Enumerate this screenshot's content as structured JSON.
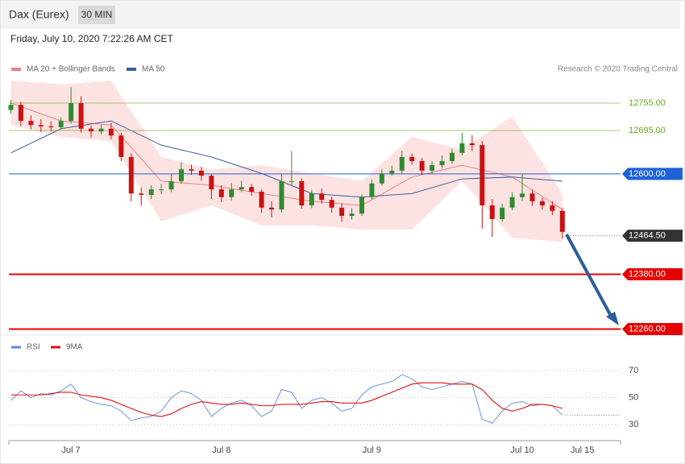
{
  "header": {
    "title": "Dax (Eurex)",
    "interval": "30 MIN",
    "timestamp": "Friday, July 10, 2020 7:22:26 AM CET"
  },
  "chart_data": [
    {
      "type": "candlestick",
      "legend": [
        {
          "name": "MA 20 + Bollinger Bands",
          "color": "#f08080"
        },
        {
          "name": "MA 50",
          "color": "#3a5fa0"
        }
      ],
      "credit": "Research © 2020 Trading Central",
      "xlim": [
        -0.2,
        60.8
      ],
      "xticks": [
        {
          "value": 6,
          "label": "Jul 7"
        },
        {
          "value": 21,
          "label": "Jul 8"
        },
        {
          "value": 36,
          "label": "Jul 9"
        },
        {
          "value": 51,
          "label": "Jul 10"
        },
        {
          "value": 57,
          "label": "Jul 15"
        }
      ],
      "ylim": [
        12250,
        12815
      ],
      "up_color": "#2e8b2e",
      "down_color": "#cc1111",
      "candles": [
        [
          12740,
          12762,
          12732,
          12751
        ],
        [
          12751,
          12758,
          12705,
          12716
        ],
        [
          12716,
          12728,
          12698,
          12707
        ],
        [
          12707,
          12720,
          12692,
          12704
        ],
        [
          12704,
          12715,
          12694,
          12702
        ],
        [
          12702,
          12724,
          12698,
          12716
        ],
        [
          12716,
          12790,
          12710,
          12755
        ],
        [
          12755,
          12770,
          12690,
          12699
        ],
        [
          12699,
          12706,
          12680,
          12693
        ],
        [
          12693,
          12708,
          12686,
          12699
        ],
        [
          12699,
          12712,
          12676,
          12684
        ],
        [
          12684,
          12690,
          12628,
          12637
        ],
        [
          12637,
          12645,
          12540,
          12557
        ],
        [
          12557,
          12570,
          12530,
          12554
        ],
        [
          12554,
          12575,
          12545,
          12566
        ],
        [
          12566,
          12578,
          12556,
          12566
        ],
        [
          12566,
          12600,
          12560,
          12584
        ],
        [
          12584,
          12625,
          12578,
          12610
        ],
        [
          12610,
          12620,
          12598,
          12607
        ],
        [
          12607,
          12615,
          12585,
          12596
        ],
        [
          12596,
          12600,
          12545,
          12566
        ],
        [
          12566,
          12575,
          12538,
          12549
        ],
        [
          12549,
          12580,
          12542,
          12566
        ],
        [
          12566,
          12585,
          12560,
          12571
        ],
        [
          12571,
          12578,
          12552,
          12561
        ],
        [
          12561,
          12566,
          12515,
          12526
        ],
        [
          12526,
          12540,
          12505,
          12522
        ],
        [
          12522,
          12600,
          12515,
          12584
        ],
        [
          12584,
          12650,
          12576,
          12584
        ],
        [
          12584,
          12590,
          12524,
          12531
        ],
        [
          12531,
          12565,
          12525,
          12557
        ],
        [
          12557,
          12568,
          12535,
          12543
        ],
        [
          12543,
          12550,
          12515,
          12526
        ],
        [
          12526,
          12535,
          12495,
          12508
        ],
        [
          12508,
          12525,
          12500,
          12513
        ],
        [
          12513,
          12555,
          12508,
          12549
        ],
        [
          12549,
          12588,
          12544,
          12579
        ],
        [
          12579,
          12610,
          12574,
          12601
        ],
        [
          12601,
          12618,
          12596,
          12607
        ],
        [
          12607,
          12650,
          12600,
          12637
        ],
        [
          12637,
          12645,
          12620,
          12628
        ],
        [
          12628,
          12635,
          12598,
          12607
        ],
        [
          12607,
          12628,
          12600,
          12619
        ],
        [
          12619,
          12640,
          12612,
          12628
        ],
        [
          12628,
          12655,
          12622,
          12646
        ],
        [
          12646,
          12690,
          12640,
          12667
        ],
        [
          12667,
          12685,
          12650,
          12663
        ],
        [
          12663,
          12672,
          12480,
          12531
        ],
        [
          12531,
          12545,
          12462,
          12501
        ],
        [
          12501,
          12535,
          12495,
          12526
        ],
        [
          12526,
          12560,
          12520,
          12549
        ],
        [
          12549,
          12600,
          12540,
          12557
        ],
        [
          12557,
          12565,
          12530,
          12540
        ],
        [
          12540,
          12548,
          12522,
          12531
        ],
        [
          12531,
          12540,
          12510,
          12519
        ],
        [
          12519,
          12525,
          12458,
          12473
        ]
      ],
      "overlay_x": [
        0,
        5,
        10,
        15,
        20,
        25,
        30,
        35,
        40,
        45,
        50,
        55
      ],
      "band_color": "#fde2e2",
      "bollinger_upper": [
        12804,
        12796,
        12804,
        12637,
        12610,
        12619,
        12601,
        12584,
        12681,
        12654,
        12725,
        12557
      ],
      "bollinger_lower": [
        12707,
        12681,
        12672,
        12496,
        12531,
        12487,
        12487,
        12478,
        12478,
        12584,
        12460,
        12451
      ],
      "ma20": [
        12755,
        12716,
        12707,
        12584,
        12575,
        12557,
        12540,
        12531,
        12593,
        12619,
        12593,
        12522
      ],
      "ma50": [
        12646,
        12699,
        12716,
        12663,
        12637,
        12601,
        12557,
        12549,
        12557,
        12589,
        12593,
        12584
      ],
      "levels": [
        {
          "value": 12755,
          "label": "12755.00",
          "color": "#6aaa1e",
          "style": "text",
          "line": "solid"
        },
        {
          "value": 12695,
          "label": "12695.00",
          "color": "#6aaa1e",
          "style": "text",
          "line": "solid"
        },
        {
          "value": 12600,
          "label": "12600.00",
          "color": "#1f62d8",
          "style": "tag",
          "line": "solid"
        },
        {
          "value": 12464.5,
          "label": "12464.50",
          "color": "#333333",
          "style": "tag",
          "line": "dotted"
        },
        {
          "value": 12380,
          "label": "12380.00",
          "color": "#e60000",
          "style": "tag",
          "line": "thick"
        },
        {
          "value": 12260,
          "label": "12260.00",
          "color": "#e60000",
          "style": "tag",
          "line": "thick"
        }
      ]
    },
    {
      "type": "line",
      "ylim": [
        19,
        82
      ],
      "yticks": [
        70,
        50,
        30
      ],
      "series": [
        {
          "name": "RSI",
          "color": "#5b8bdc",
          "values": [
            48,
            55,
            50,
            53,
            52,
            55,
            60,
            50,
            47,
            45,
            44,
            40,
            33,
            35,
            36,
            40,
            50,
            55,
            53,
            48,
            36,
            42,
            46,
            48,
            44,
            36,
            40,
            56,
            54,
            42,
            48,
            50,
            46,
            40,
            42,
            52,
            58,
            60,
            62,
            67,
            64,
            58,
            56,
            58,
            60,
            62,
            60,
            34,
            31,
            40,
            46,
            47,
            44,
            45,
            44,
            37
          ]
        },
        {
          "name": "9MA",
          "color": "#e01010",
          "values": [
            52,
            52,
            52,
            52,
            53,
            54,
            54,
            52,
            51,
            50,
            48,
            45,
            42,
            39,
            37,
            36,
            38,
            42,
            45,
            47,
            46,
            45,
            45,
            46,
            45,
            44,
            44,
            45,
            45,
            45,
            46,
            47,
            47,
            46,
            46,
            46,
            48,
            51,
            54,
            57,
            60,
            61,
            61,
            61,
            60,
            60,
            60,
            56,
            48,
            42,
            40,
            42,
            45,
            45,
            44,
            42
          ]
        }
      ]
    }
  ]
}
